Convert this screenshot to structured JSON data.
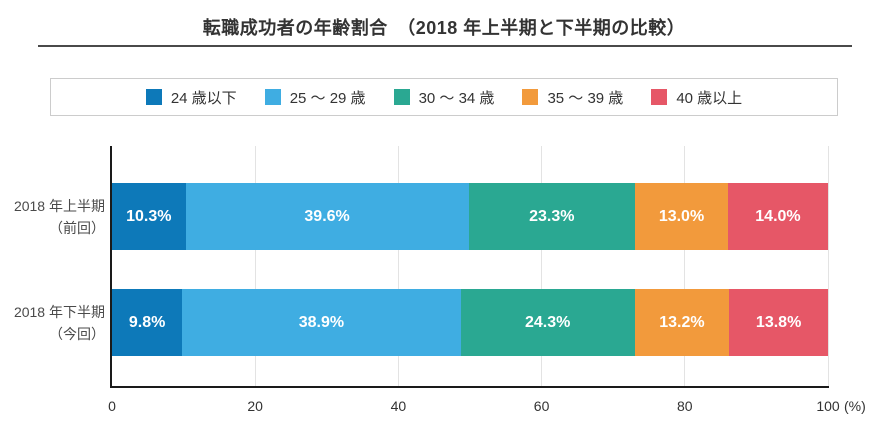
{
  "title": "転職成功者の年齢割合　（2018 年上半期と下半期の比較）",
  "chart_data": {
    "type": "bar",
    "stacked": true,
    "orientation": "horizontal",
    "title": "転職成功者の年齢割合（2018 年上半期と下半期の比較）",
    "categories": [
      {
        "label": "2018 年上半期",
        "sub": "（前回）"
      },
      {
        "label": "2018 年下半期",
        "sub": "（今回）"
      }
    ],
    "series": [
      {
        "name": "24 歳以下",
        "color": "#0d79b9",
        "values": [
          10.3,
          9.8
        ]
      },
      {
        "name": "25 ～ 29 歳",
        "color": "#3fade2",
        "values": [
          39.6,
          38.9
        ]
      },
      {
        "name": "30 ～ 34 歳",
        "color": "#2aa892",
        "values": [
          23.3,
          24.3
        ]
      },
      {
        "name": "35 ～ 39 歳",
        "color": "#f29a3c",
        "values": [
          13.0,
          13.2
        ]
      },
      {
        "name": "40 歳以上",
        "color": "#e65767",
        "values": [
          14.0,
          13.8
        ]
      }
    ],
    "value_suffix": "%",
    "xlim": [
      0,
      100
    ],
    "x_ticks": [
      0,
      20,
      40,
      60,
      80,
      100
    ],
    "x_unit": "(%)",
    "grid": true,
    "legend_position": "top"
  }
}
